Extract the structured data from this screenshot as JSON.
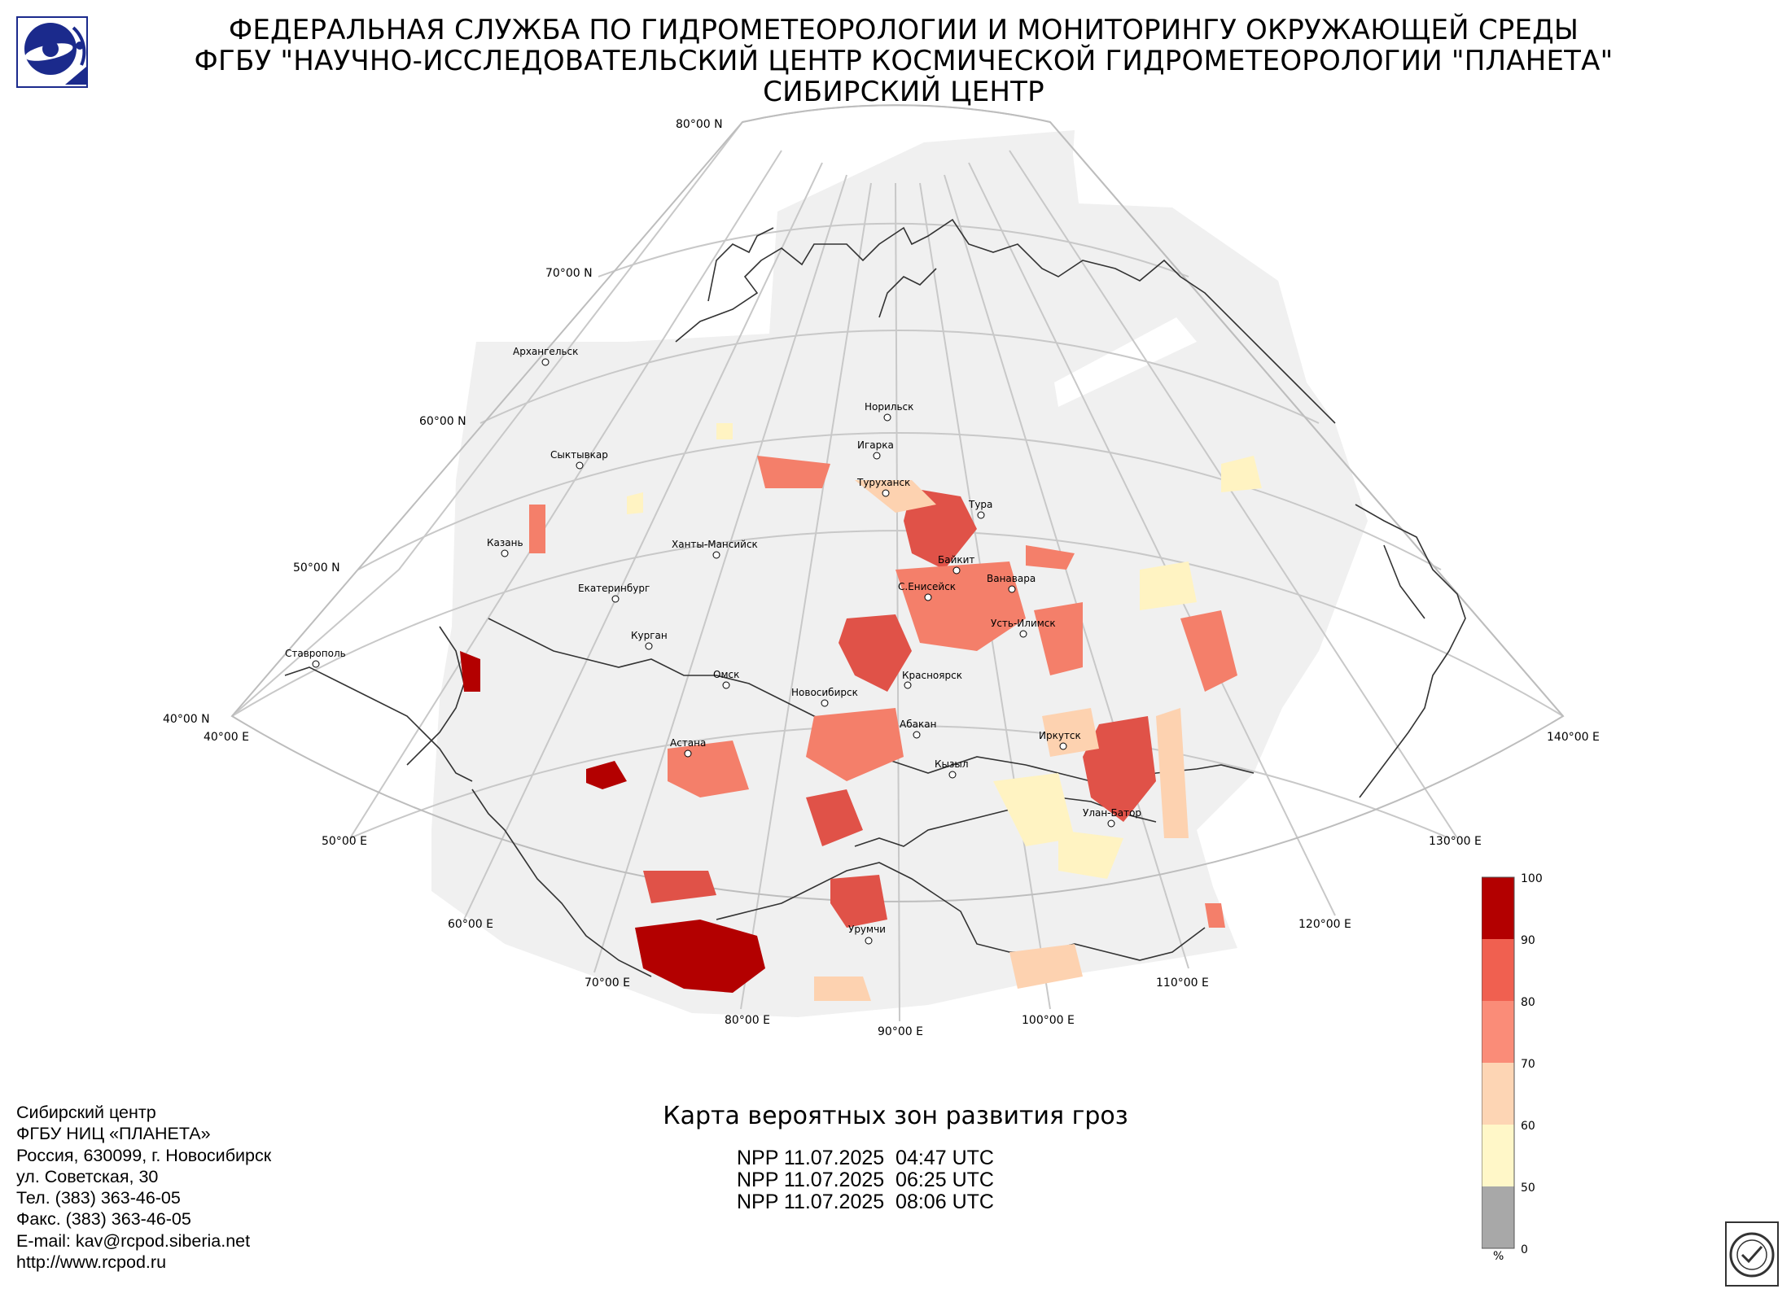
{
  "header": {
    "line1": "ФЕДЕРАЛЬНАЯ СЛУЖБА ПО ГИДРОМЕТЕОРОЛОГИИ И МОНИТОРИНГУ ОКРУЖАЮЩЕЙ СРЕДЫ",
    "line2": "ФГБУ \"НАУЧНО-ИССЛЕДОВАТЕЛЬСКИЙ ЦЕНТР КОСМИЧЕСКОЙ ГИДРОМЕТЕОРОЛОГИИ \"ПЛАНЕТА\"",
    "line3": "СИБИРСКИЙ ЦЕНТР"
  },
  "map": {
    "title": "Карта вероятных зон развития гроз",
    "passes": [
      "NPP 11.07.2025  04:47 UTC",
      "NPP 11.07.2025  06:25 UTC",
      "NPP 11.07.2025  08:06 UTC"
    ],
    "latitude_labels": [
      "80°00 N",
      "70°00 N",
      "60°00 N",
      "50°00 N",
      "40°00 N"
    ],
    "longitude_labels": [
      "40°00 E",
      "50°00 E",
      "60°00 E",
      "70°00 E",
      "80°00 E",
      "90°00 E",
      "100°00 E",
      "110°00 E",
      "120°00 E",
      "130°00 E",
      "140°00 E"
    ],
    "cities": [
      "Архангельск",
      "Сыктывкар",
      "Казань",
      "Ханты-Мансийск",
      "Екатеринбург",
      "Курган",
      "Ставрополь",
      "Омск",
      "Астана",
      "Новосибирск",
      "Норильск",
      "Игарка",
      "Туруханск",
      "Тура",
      "Байкит",
      "Ванавара",
      "С.Енисейск",
      "Усть-Илимск",
      "Красноярск",
      "Абакан",
      "Кызыл",
      "Иркутск",
      "Улан-Батор",
      "Урумчи"
    ]
  },
  "legend": {
    "unit": "%",
    "ticks": [
      "100",
      "90",
      "80",
      "70",
      "60",
      "50",
      "0"
    ],
    "colors": [
      "#b30000",
      "#f06050",
      "#fa8c78",
      "#fdd5b4",
      "#fff7c8",
      "#a8a8a8"
    ]
  },
  "contacts": [
    "Сибирский центр",
    "ФГБУ НИЦ «ПЛАНЕТА»",
    "Россия, 630099, г. Новосибирск",
    "ул. Советская, 30",
    "Тел. (383) 363-46-05",
    "Факс. (383) 363-46-05",
    "E-mail: kav@rcpod.siberia.net",
    "http://www.rcpod.ru"
  ]
}
